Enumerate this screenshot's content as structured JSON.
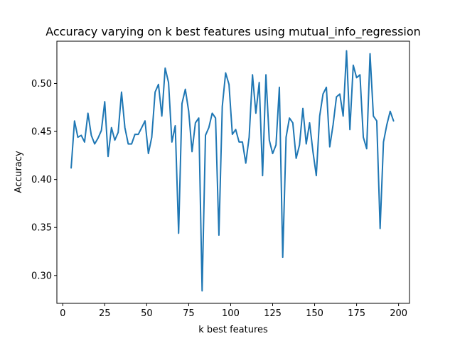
{
  "chart_data": {
    "type": "line",
    "title": "Accuracy varying on k best features using mutual_info_regression",
    "xlabel": "k best features",
    "ylabel": "Accuracy",
    "xlim": [
      -3.5,
      206.5
    ],
    "ylim": [
      0.271,
      0.544
    ],
    "xticks": [
      0,
      25,
      50,
      75,
      100,
      125,
      150,
      175,
      200
    ],
    "xtick_labels": [
      "0",
      "25",
      "50",
      "75",
      "100",
      "125",
      "150",
      "175",
      "200"
    ],
    "yticks": [
      0.3,
      0.35,
      0.4,
      0.45,
      0.5
    ],
    "ytick_labels": [
      "0.30",
      "0.35",
      "0.40",
      "0.45",
      "0.50"
    ],
    "grid": false,
    "line_color": "#1f77b4",
    "series": [
      {
        "x": [
          5,
          7,
          9,
          11,
          13,
          15,
          17,
          19,
          21,
          23,
          25,
          27,
          29,
          31,
          33,
          35,
          37,
          39,
          41,
          43,
          45,
          47,
          49,
          51,
          53,
          55,
          57,
          59,
          61,
          63,
          65,
          67,
          69,
          71,
          73,
          75,
          77,
          79,
          81,
          83,
          85,
          87,
          89,
          91,
          93,
          95,
          97,
          99,
          101,
          103,
          105,
          107,
          109,
          111,
          113,
          115,
          117,
          119,
          121,
          123,
          125,
          127,
          129,
          131,
          133,
          135,
          137,
          139,
          141,
          143,
          145,
          147,
          149,
          151,
          153,
          155,
          157,
          159,
          161,
          163,
          165,
          167,
          169,
          171,
          173,
          175,
          177,
          179,
          181,
          183,
          185,
          187,
          189,
          191,
          193,
          195,
          197
        ],
        "values": [
          0.412,
          0.461,
          0.444,
          0.446,
          0.439,
          0.469,
          0.446,
          0.437,
          0.443,
          0.451,
          0.481,
          0.424,
          0.454,
          0.441,
          0.449,
          0.491,
          0.454,
          0.437,
          0.437,
          0.447,
          0.447,
          0.454,
          0.461,
          0.427,
          0.444,
          0.491,
          0.499,
          0.466,
          0.516,
          0.501,
          0.439,
          0.456,
          0.344,
          0.479,
          0.494,
          0.471,
          0.429,
          0.459,
          0.464,
          0.284,
          0.446,
          0.454,
          0.469,
          0.464,
          0.342,
          0.476,
          0.511,
          0.499,
          0.447,
          0.452,
          0.439,
          0.439,
          0.417,
          0.444,
          0.509,
          0.469,
          0.501,
          0.404,
          0.509,
          0.441,
          0.427,
          0.436,
          0.496,
          0.319,
          0.444,
          0.464,
          0.459,
          0.422,
          0.436,
          0.474,
          0.437,
          0.459,
          0.429,
          0.404,
          0.466,
          0.489,
          0.496,
          0.434,
          0.457,
          0.486,
          0.489,
          0.466,
          0.534,
          0.452,
          0.519,
          0.506,
          0.509,
          0.444,
          0.432,
          0.531,
          0.466,
          0.461,
          0.349,
          0.439,
          0.457,
          0.471,
          0.461
        ]
      }
    ]
  }
}
